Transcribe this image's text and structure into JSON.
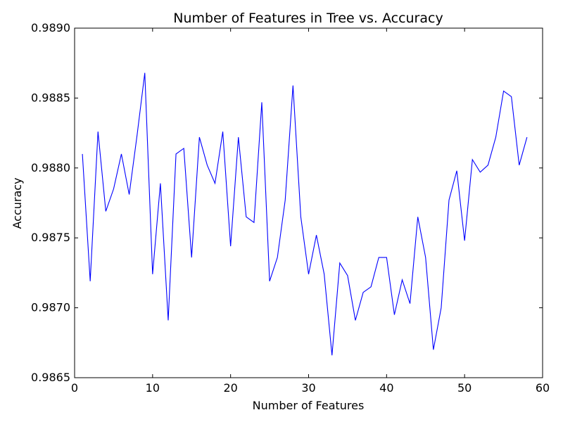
{
  "chart_data": {
    "type": "line",
    "title": "Number of Features in Tree vs. Accuracy",
    "xlabel": "Number of Features",
    "ylabel": "Accuracy",
    "xlim": [
      0,
      60
    ],
    "ylim": [
      0.9865,
      0.989
    ],
    "xticks": [
      0,
      10,
      20,
      30,
      40,
      50,
      60
    ],
    "xtick_labels": [
      "0",
      "10",
      "20",
      "30",
      "40",
      "50",
      "60"
    ],
    "yticks": [
      0.9865,
      0.987,
      0.9875,
      0.988,
      0.9885,
      0.989
    ],
    "ytick_labels": [
      "0.9865",
      "0.9870",
      "0.9875",
      "0.9880",
      "0.9885",
      "0.9890"
    ],
    "grid": false,
    "line_color": "#0000ff",
    "series": [
      {
        "x": [
          1,
          2,
          3,
          4,
          5,
          6,
          7,
          8,
          9,
          10,
          11,
          12,
          13,
          14,
          15,
          16,
          17,
          18,
          19,
          20,
          21,
          22,
          23,
          24,
          25,
          26,
          27,
          28,
          29,
          30,
          31,
          32,
          33,
          34,
          35,
          36,
          37,
          38,
          39,
          40,
          41,
          42,
          43,
          44,
          45,
          46,
          47,
          48,
          49,
          50,
          51,
          52,
          53,
          54,
          55,
          56,
          57,
          58
        ],
        "values": [
          0.9881,
          0.98719,
          0.98826,
          0.98769,
          0.98785,
          0.9881,
          0.98781,
          0.98823,
          0.98868,
          0.98724,
          0.98789,
          0.98691,
          0.9881,
          0.98814,
          0.98736,
          0.98822,
          0.98802,
          0.98789,
          0.98826,
          0.98744,
          0.98822,
          0.98765,
          0.98761,
          0.98847,
          0.98719,
          0.98736,
          0.98777,
          0.98859,
          0.98765,
          0.98724,
          0.98752,
          0.98724,
          0.98666,
          0.98732,
          0.98723,
          0.98691,
          0.98711,
          0.98715,
          0.98736,
          0.98736,
          0.98695,
          0.9872,
          0.98703,
          0.98765,
          0.98736,
          0.9867,
          0.987,
          0.98777,
          0.98798,
          0.98748,
          0.98806,
          0.98797,
          0.98802,
          0.98822,
          0.98855,
          0.98851,
          0.98802,
          0.98822
        ]
      }
    ]
  }
}
